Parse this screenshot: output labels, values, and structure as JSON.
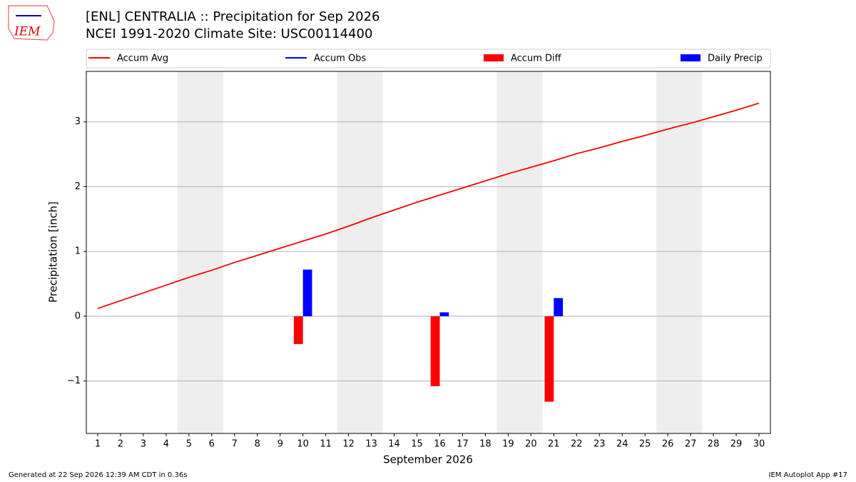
{
  "chart_data": {
    "type": "bar",
    "logo_text": "IEM",
    "title": "[ENL] CENTRALIA :: Precipitation for Sep 2026",
    "subtitle": "NCEI 1991-2020 Climate Site: USC00114400",
    "xlabel": "September 2026",
    "ylabel": "Precipitation [inch]",
    "footer_left": "Generated at 22 Sep 2026 12:39 AM CDT in 0.36s",
    "footer_right": "IEM Autoplot App #17",
    "x": [
      1,
      2,
      3,
      4,
      5,
      6,
      7,
      8,
      9,
      10,
      11,
      12,
      13,
      14,
      15,
      16,
      17,
      18,
      19,
      20,
      21,
      22,
      23,
      24,
      25,
      26,
      27,
      28,
      29,
      30
    ],
    "xlim": [
      0.5,
      30.5
    ],
    "xticks": [
      1,
      2,
      3,
      4,
      5,
      6,
      7,
      8,
      9,
      10,
      11,
      12,
      13,
      14,
      15,
      16,
      17,
      18,
      19,
      20,
      21,
      22,
      23,
      24,
      25,
      26,
      27,
      28,
      29,
      30
    ],
    "ylim": [
      -1.81,
      3.78
    ],
    "yticks": [
      {
        "value": -1,
        "label": "−1"
      },
      0,
      1,
      2,
      3
    ],
    "grid": true,
    "shaded_x": [
      [
        4.5,
        6.5
      ],
      [
        11.5,
        13.5
      ],
      [
        18.5,
        20.5
      ],
      [
        25.5,
        27.5
      ]
    ],
    "series": [
      {
        "name": "Accum Avg",
        "type": "line",
        "color": "#ff0000",
        "values": [
          0.12,
          0.24,
          0.36,
          0.48,
          0.6,
          0.71,
          0.83,
          0.94,
          1.05,
          1.16,
          1.27,
          1.39,
          1.52,
          1.64,
          1.76,
          1.87,
          1.98,
          2.09,
          2.2,
          2.3,
          2.4,
          2.51,
          2.6,
          2.7,
          2.79,
          2.89,
          2.98,
          3.08,
          3.18,
          3.29
        ]
      },
      {
        "name": "Accum Obs",
        "type": "line",
        "color": "#0000ff",
        "values": [
          null,
          null,
          null,
          null,
          null,
          null,
          null,
          null,
          null,
          null,
          null,
          null,
          null,
          null,
          null,
          null,
          null,
          null,
          null,
          null,
          null,
          null,
          null,
          null,
          null,
          null,
          null,
          null,
          null,
          null
        ]
      },
      {
        "name": "Accum Diff",
        "type": "bar",
        "color": "#ff0000",
        "values": [
          null,
          null,
          null,
          null,
          null,
          null,
          null,
          null,
          null,
          -0.43,
          null,
          null,
          null,
          null,
          null,
          -1.08,
          null,
          null,
          null,
          null,
          -1.32,
          null,
          null,
          null,
          null,
          null,
          null,
          null,
          null,
          null
        ]
      },
      {
        "name": "Daily Precip",
        "type": "bar",
        "color": "#0000ff",
        "values": [
          null,
          null,
          null,
          null,
          null,
          null,
          null,
          null,
          null,
          0.72,
          null,
          null,
          null,
          null,
          null,
          0.06,
          null,
          null,
          null,
          null,
          0.28,
          null,
          null,
          null,
          null,
          null,
          null,
          null,
          null,
          null
        ]
      }
    ]
  }
}
